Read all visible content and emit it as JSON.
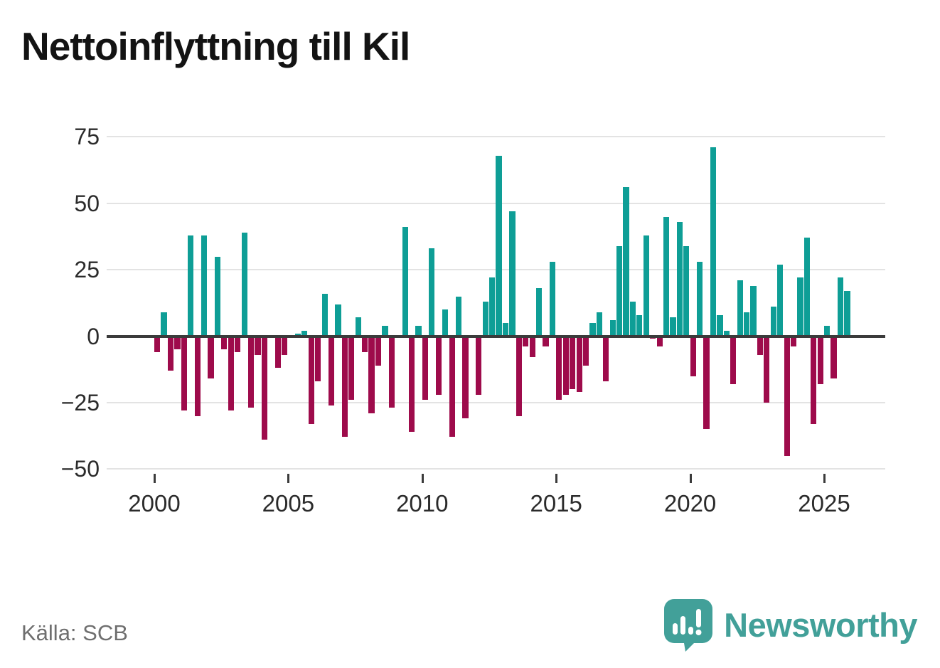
{
  "title": "Nettoinflyttning till Kil",
  "source": "Källa: SCB",
  "brand": {
    "name": "Newsworthy"
  },
  "colors": {
    "positive": "#0e9e96",
    "negative": "#9e0b4b",
    "axis": "#3b3b3b",
    "grid": "#e3e3e3",
    "tick_label": "#2b2b2b",
    "source_text": "#6f6f6f",
    "logo": "#42a099"
  },
  "chart_data": {
    "type": "bar",
    "title": "Nettoinflyttning till Kil",
    "xlabel": "",
    "ylabel": "",
    "frequency": "quarterly",
    "ylim": [
      -50,
      75
    ],
    "grid": true,
    "legend": "none",
    "y_ticks": [
      {
        "value": 75,
        "label": "75"
      },
      {
        "value": 50,
        "label": "50"
      },
      {
        "value": 25,
        "label": "25"
      },
      {
        "value": 0,
        "label": "0"
      },
      {
        "value": -25,
        "label": "−25"
      },
      {
        "value": -50,
        "label": "−50"
      }
    ],
    "x_ticks": [
      {
        "year": 2000,
        "label": "2000"
      },
      {
        "year": 2005,
        "label": "2005"
      },
      {
        "year": 2010,
        "label": "2010"
      },
      {
        "year": 2015,
        "label": "2015"
      },
      {
        "year": 2020,
        "label": "2020"
      },
      {
        "year": 2025,
        "label": "2025"
      }
    ],
    "series": [
      {
        "year": 2000,
        "values": [
          -6,
          9,
          -13,
          -5
        ]
      },
      {
        "year": 2001,
        "values": [
          -28,
          38,
          -30,
          38
        ]
      },
      {
        "year": 2002,
        "values": [
          -16,
          30,
          -5,
          -28
        ]
      },
      {
        "year": 2003,
        "values": [
          -6,
          39,
          -27,
          -7
        ]
      },
      {
        "year": 2004,
        "values": [
          -39,
          0,
          -12,
          -7
        ]
      },
      {
        "year": 2005,
        "values": [
          0,
          1,
          2,
          -33
        ]
      },
      {
        "year": 2006,
        "values": [
          -17,
          16,
          -26,
          12
        ]
      },
      {
        "year": 2007,
        "values": [
          -38,
          -24,
          7,
          -6
        ]
      },
      {
        "year": 2008,
        "values": [
          -29,
          -11,
          4,
          -27
        ]
      },
      {
        "year": 2009,
        "values": [
          0,
          41,
          -36,
          4
        ]
      },
      {
        "year": 2010,
        "values": [
          -24,
          33,
          -22,
          10
        ]
      },
      {
        "year": 2011,
        "values": [
          -38,
          15,
          -31,
          0
        ]
      },
      {
        "year": 2012,
        "values": [
          -22,
          13,
          22,
          68
        ]
      },
      {
        "year": 2013,
        "values": [
          5,
          47,
          -30,
          -4
        ]
      },
      {
        "year": 2014,
        "values": [
          -8,
          18,
          -4,
          28
        ]
      },
      {
        "year": 2015,
        "values": [
          -24,
          -22,
          -20,
          -21
        ]
      },
      {
        "year": 2016,
        "values": [
          -11,
          5,
          9,
          -17
        ]
      },
      {
        "year": 2017,
        "values": [
          6,
          34,
          56,
          13
        ]
      },
      {
        "year": 2018,
        "values": [
          8,
          38,
          -1,
          -4
        ]
      },
      {
        "year": 2019,
        "values": [
          45,
          7,
          43,
          34
        ]
      },
      {
        "year": 2020,
        "values": [
          -15,
          28,
          -35,
          71
        ]
      },
      {
        "year": 2021,
        "values": [
          8,
          2,
          -18,
          21
        ]
      },
      {
        "year": 2022,
        "values": [
          9,
          19,
          -7,
          -25
        ]
      },
      {
        "year": 2023,
        "values": [
          11,
          27,
          -45,
          -4
        ]
      },
      {
        "year": 2024,
        "values": [
          22,
          37,
          -33,
          -18
        ]
      },
      {
        "year": 2025,
        "values": [
          4,
          -16,
          22,
          17
        ]
      }
    ]
  }
}
